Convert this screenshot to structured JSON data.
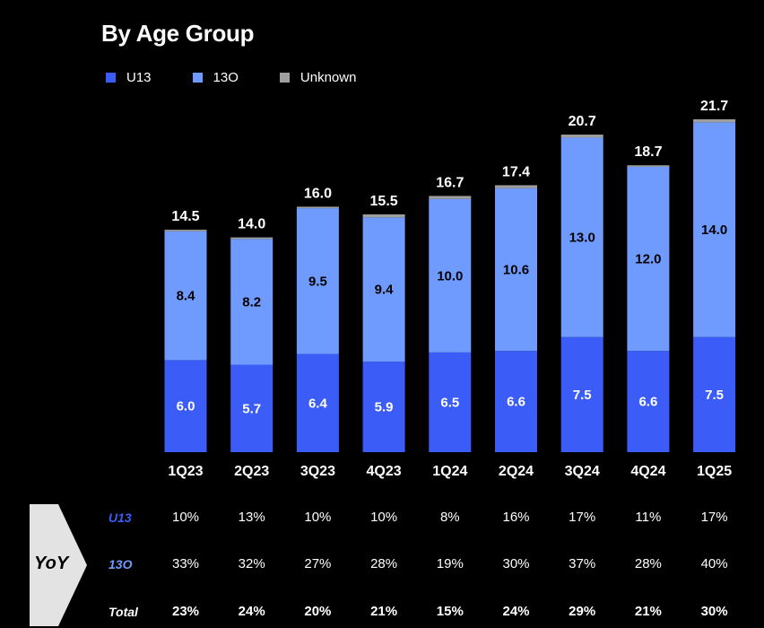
{
  "chart_data": {
    "type": "bar",
    "stacked": true,
    "title": "By Age Group",
    "legend": [
      {
        "name": "U13",
        "color": "#3b5cf6"
      },
      {
        "name": "13O",
        "color": "#6f9bff"
      },
      {
        "name": "Unknown",
        "color": "#9e9e9e"
      }
    ],
    "categories": [
      "1Q23",
      "2Q23",
      "3Q23",
      "4Q23",
      "1Q24",
      "2Q24",
      "3Q24",
      "4Q24",
      "1Q25"
    ],
    "series": [
      {
        "name": "U13",
        "values": [
          6.0,
          5.7,
          6.4,
          5.9,
          6.5,
          6.6,
          7.5,
          6.6,
          7.5
        ],
        "labels": [
          "6.0",
          "5.7",
          "6.4",
          "5.9",
          "6.5",
          "6.6",
          "7.5",
          "6.6",
          "7.5"
        ]
      },
      {
        "name": "13O",
        "values": [
          8.4,
          8.2,
          9.5,
          9.4,
          10.0,
          10.6,
          13.0,
          12.0,
          14.0
        ],
        "labels": [
          "8.4",
          "8.2",
          "9.5",
          "9.4",
          "10.0",
          "10.6",
          "13.0",
          "12.0",
          "14.0"
        ]
      },
      {
        "name": "Unknown",
        "values": [
          0.1,
          0.1,
          0.1,
          0.2,
          0.2,
          0.2,
          0.2,
          0.1,
          0.2
        ]
      }
    ],
    "totals": [
      "14.5",
      "14.0",
      "16.0",
      "15.5",
      "16.7",
      "17.4",
      "20.7",
      "18.7",
      "21.7"
    ],
    "ylim": [
      0,
      22
    ]
  },
  "yoy": {
    "label": "YoY",
    "rows": [
      {
        "label": "U13",
        "color": "#3b5cf6",
        "bold": false,
        "values": [
          "10%",
          "13%",
          "10%",
          "10%",
          "8%",
          "16%",
          "17%",
          "11%",
          "17%"
        ]
      },
      {
        "label": "13O",
        "color": "#6f9bff",
        "bold": false,
        "values": [
          "33%",
          "32%",
          "27%",
          "28%",
          "19%",
          "30%",
          "37%",
          "28%",
          "40%"
        ]
      },
      {
        "label": "Total",
        "color": "#ffffff",
        "bold": true,
        "values": [
          "23%",
          "24%",
          "20%",
          "21%",
          "15%",
          "24%",
          "29%",
          "21%",
          "30%"
        ]
      }
    ]
  }
}
